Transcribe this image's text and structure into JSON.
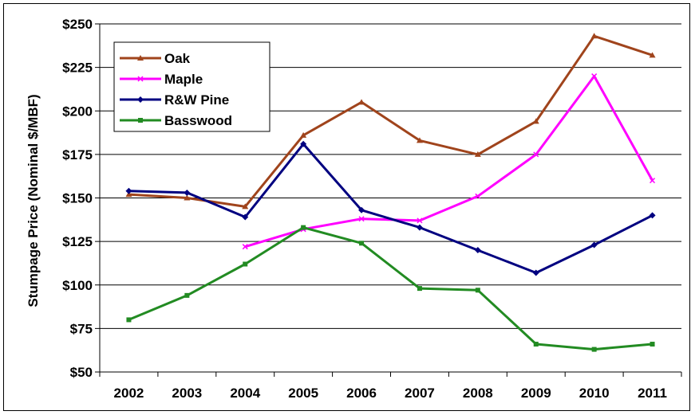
{
  "chart_data": {
    "type": "line",
    "title": "",
    "xlabel": "",
    "ylabel": "Stumpage Price (Nominal $/MBF)",
    "categories": [
      "2002",
      "2003",
      "2004",
      "2005",
      "2006",
      "2007",
      "2008",
      "2009",
      "2010",
      "2011"
    ],
    "ylim": [
      50,
      250
    ],
    "yticks": [
      50,
      75,
      100,
      125,
      150,
      175,
      200,
      225,
      250
    ],
    "ytick_labels": [
      "$50",
      "$75",
      "$100",
      "$125",
      "$150",
      "$175",
      "$200",
      "$225",
      "$250"
    ],
    "grid": "horizontal",
    "legend_position": "top-left",
    "series": [
      {
        "name": "Oak",
        "color": "#A0441C",
        "marker": "triangle",
        "values": [
          152,
          150,
          145,
          186,
          205,
          183,
          175,
          194,
          243,
          232
        ]
      },
      {
        "name": "Maple",
        "color": "#FF00FF",
        "marker": "x",
        "values": [
          null,
          null,
          122,
          132,
          138,
          137,
          151,
          175,
          220,
          160
        ]
      },
      {
        "name": "R&W Pine",
        "color": "#000080",
        "marker": "diamond",
        "values": [
          154,
          153,
          139,
          181,
          143,
          133,
          120,
          107,
          123,
          140
        ]
      },
      {
        "name": "Basswood",
        "color": "#228B22",
        "marker": "square",
        "values": [
          80,
          94,
          112,
          133,
          124,
          98,
          97,
          66,
          63,
          66
        ]
      }
    ]
  }
}
